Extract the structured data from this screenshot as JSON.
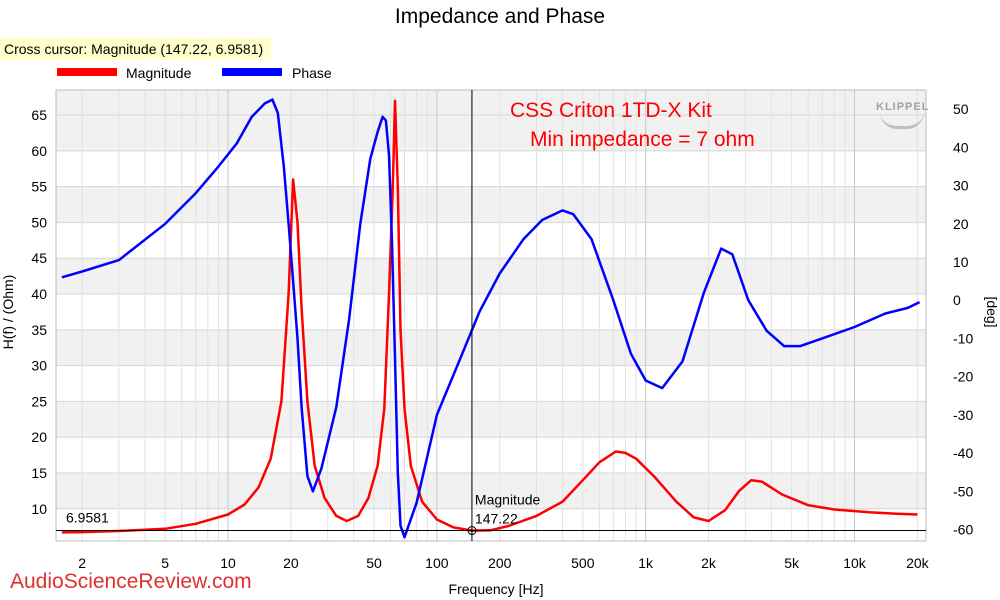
{
  "cursor": {
    "readout": "Cross cursor: Magnitude (147.22, 6.9581)",
    "x": 147.22,
    "y": 6.9581,
    "series_label": "Magnitude",
    "x_label": "147.22",
    "y_label": "6.9581"
  },
  "watermark": "AudioScienceReview.com",
  "brand": "KLIPPEL",
  "chart_data": {
    "type": "line",
    "title": "Impedance and Phase",
    "xlabel": "Frequency [Hz]",
    "ylabel": "H(f) / (Ohm)",
    "ylabel_right": "[deg]",
    "x_scale": "log",
    "xlim": [
      1.5,
      22000
    ],
    "ylim": [
      5.5,
      68.5
    ],
    "ylim_right": [
      -63,
      55
    ],
    "grid": true,
    "legend_position": "top-left",
    "x_ticks": [
      {
        "v": 2,
        "label": "2"
      },
      {
        "v": 5,
        "label": "5"
      },
      {
        "v": 10,
        "label": "10"
      },
      {
        "v": 20,
        "label": "20"
      },
      {
        "v": 50,
        "label": "50"
      },
      {
        "v": 100,
        "label": "100"
      },
      {
        "v": 200,
        "label": "200"
      },
      {
        "v": 500,
        "label": "500"
      },
      {
        "v": 1000,
        "label": "1k"
      },
      {
        "v": 2000,
        "label": "2k"
      },
      {
        "v": 5000,
        "label": "5k"
      },
      {
        "v": 10000,
        "label": "10k"
      },
      {
        "v": 20000,
        "label": "20k"
      }
    ],
    "y_ticks": [
      10,
      15,
      20,
      25,
      30,
      35,
      40,
      45,
      50,
      55,
      60,
      65
    ],
    "y_ticks_right": [
      -60,
      -50,
      -40,
      -30,
      -20,
      -10,
      0,
      10,
      20,
      30,
      40,
      50
    ],
    "annotations": [
      "CSS Criton 1TD-X Kit",
      "Min impedance = 7 ohm"
    ],
    "series": [
      {
        "name": "Magnitude",
        "color": "#ff0000",
        "axis": "left",
        "points": [
          [
            1.6,
            6.7
          ],
          [
            2,
            6.75
          ],
          [
            3,
            6.9
          ],
          [
            5,
            7.2
          ],
          [
            7,
            7.9
          ],
          [
            10,
            9.2
          ],
          [
            12,
            10.6
          ],
          [
            14,
            13.0
          ],
          [
            16,
            17.0
          ],
          [
            18,
            25.0
          ],
          [
            19.5,
            40.0
          ],
          [
            20.5,
            56.0
          ],
          [
            21.5,
            50.0
          ],
          [
            22.5,
            38.0
          ],
          [
            24,
            25.0
          ],
          [
            26,
            16.0
          ],
          [
            29,
            11.5
          ],
          [
            33,
            9.0
          ],
          [
            37,
            8.3
          ],
          [
            42,
            9.0
          ],
          [
            47,
            11.5
          ],
          [
            52,
            16.0
          ],
          [
            56,
            24.0
          ],
          [
            59,
            40.0
          ],
          [
            61.5,
            55.0
          ],
          [
            63,
            67.0
          ],
          [
            65,
            55.0
          ],
          [
            67,
            35.0
          ],
          [
            70,
            24.0
          ],
          [
            75,
            16.0
          ],
          [
            85,
            11.0
          ],
          [
            100,
            8.5
          ],
          [
            120,
            7.4
          ],
          [
            147.22,
            6.9581
          ],
          [
            180,
            7.0
          ],
          [
            220,
            7.6
          ],
          [
            300,
            9.0
          ],
          [
            400,
            11.0
          ],
          [
            500,
            14.0
          ],
          [
            600,
            16.5
          ],
          [
            720,
            18.0
          ],
          [
            800,
            17.8
          ],
          [
            900,
            17.0
          ],
          [
            1100,
            14.5
          ],
          [
            1400,
            11.0
          ],
          [
            1700,
            8.8
          ],
          [
            2000,
            8.3
          ],
          [
            2400,
            9.8
          ],
          [
            2800,
            12.5
          ],
          [
            3200,
            14.0
          ],
          [
            3600,
            13.8
          ],
          [
            4500,
            12.0
          ],
          [
            6000,
            10.5
          ],
          [
            8000,
            9.9
          ],
          [
            12000,
            9.5
          ],
          [
            16000,
            9.3
          ],
          [
            20000,
            9.2
          ]
        ]
      },
      {
        "name": "Phase",
        "color": "#0000ff",
        "axis": "right",
        "points": [
          [
            1.6,
            6.0
          ],
          [
            2,
            7.5
          ],
          [
            3,
            10.5
          ],
          [
            5,
            20.0
          ],
          [
            7,
            28.0
          ],
          [
            9,
            35.0
          ],
          [
            11,
            41.0
          ],
          [
            13,
            48.0
          ],
          [
            15,
            51.5
          ],
          [
            16.3,
            52.5
          ],
          [
            17.3,
            49.0
          ],
          [
            18.5,
            35.0
          ],
          [
            19.5,
            20.0
          ],
          [
            20.5,
            5.0
          ],
          [
            21.5,
            -10.0
          ],
          [
            22.5,
            -28.0
          ],
          [
            24,
            -46.0
          ],
          [
            25.5,
            -50.0
          ],
          [
            28,
            -44.0
          ],
          [
            33,
            -28.0
          ],
          [
            38,
            -5.0
          ],
          [
            43,
            20.0
          ],
          [
            48,
            37.0
          ],
          [
            52,
            44.0
          ],
          [
            55,
            48.0
          ],
          [
            57,
            47.0
          ],
          [
            59,
            38.0
          ],
          [
            61,
            15.0
          ],
          [
            63,
            -15.0
          ],
          [
            65,
            -45.0
          ],
          [
            67,
            -59.0
          ],
          [
            70,
            -62.0
          ],
          [
            80,
            -53.0
          ],
          [
            100,
            -30.0
          ],
          [
            130,
            -15.0
          ],
          [
            160,
            -3.0
          ],
          [
            200,
            7.0
          ],
          [
            260,
            16.0
          ],
          [
            320,
            21.0
          ],
          [
            400,
            23.5
          ],
          [
            450,
            22.5
          ],
          [
            550,
            16.0
          ],
          [
            700,
            0.0
          ],
          [
            850,
            -14.0
          ],
          [
            1000,
            -21.0
          ],
          [
            1200,
            -23.0
          ],
          [
            1500,
            -16.0
          ],
          [
            1900,
            2.0
          ],
          [
            2300,
            13.5
          ],
          [
            2600,
            12.0
          ],
          [
            3100,
            0.0
          ],
          [
            3800,
            -8.0
          ],
          [
            4600,
            -12.0
          ],
          [
            5500,
            -12.0
          ],
          [
            7000,
            -10.0
          ],
          [
            10000,
            -7.0
          ],
          [
            14000,
            -3.5
          ],
          [
            18000,
            -2.0
          ],
          [
            20500,
            -0.5
          ]
        ]
      }
    ]
  }
}
